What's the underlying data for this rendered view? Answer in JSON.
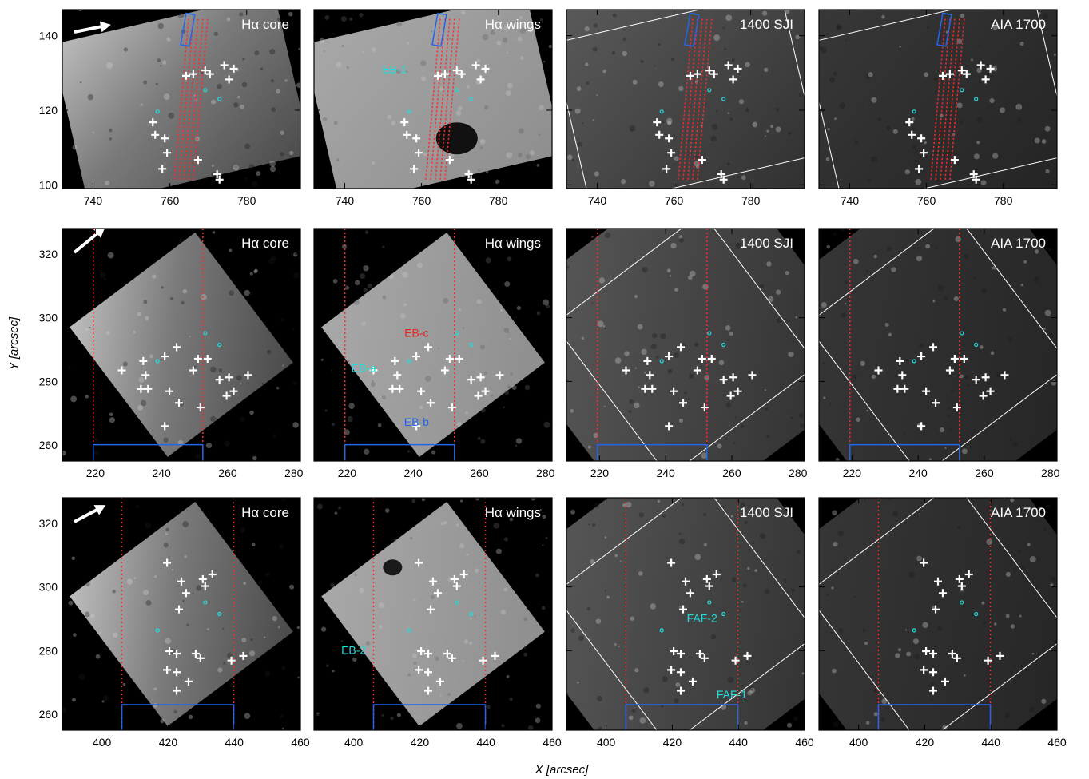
{
  "figure": {
    "xlabel": "X [arcsec]",
    "ylabel": "Y [arcsec]",
    "columns": [
      "Hα core",
      "Hα wings",
      "1400 SJI",
      "AIA 1700"
    ],
    "rows": [
      {
        "row_id": "row-1",
        "xticks": [
          740,
          760,
          780
        ],
        "yticks": [
          100,
          120,
          140
        ],
        "xlim": [
          732,
          794
        ],
        "ylim": [
          99,
          147
        ],
        "annotations": [
          {
            "col": 1,
            "text": "EB-1",
            "color": "#22dddd",
            "x": 753,
            "y": 130
          }
        ]
      },
      {
        "row_id": "row-2",
        "xticks": [
          220,
          240,
          260,
          280
        ],
        "yticks": [
          260,
          280,
          300,
          320
        ],
        "xlim": [
          210,
          282
        ],
        "ylim": [
          255,
          328
        ],
        "annotations": [
          {
            "col": 1,
            "text": "EB-c",
            "color": "#ee2222",
            "x": 241,
            "y": 294
          },
          {
            "col": 1,
            "text": "EB-a",
            "color": "#22dddd",
            "x": 225,
            "y": 283
          },
          {
            "col": 1,
            "text": "EB-b",
            "color": "#2266ee",
            "x": 241,
            "y": 266
          }
        ]
      },
      {
        "row_id": "row-3",
        "xticks": [
          400,
          420,
          440,
          460
        ],
        "yticks": [
          260,
          280,
          300,
          320
        ],
        "xlim": [
          388,
          460
        ],
        "ylim": [
          255,
          328
        ],
        "annotations": [
          {
            "col": 1,
            "text": "EB-2",
            "color": "#22dddd",
            "x": 400,
            "y": 279
          },
          {
            "col": 2,
            "text": "FAF-2",
            "color": "#22dddd",
            "x": 429,
            "y": 289
          },
          {
            "col": 2,
            "text": "FAF-1",
            "color": "#22dddd",
            "x": 438,
            "y": 265
          }
        ]
      }
    ]
  },
  "colors": {
    "cross": "#ffffff",
    "slit": "#ff2a2a",
    "box": "#2266ee",
    "arrow": "#ffffff",
    "cyan": "#22dddd"
  }
}
